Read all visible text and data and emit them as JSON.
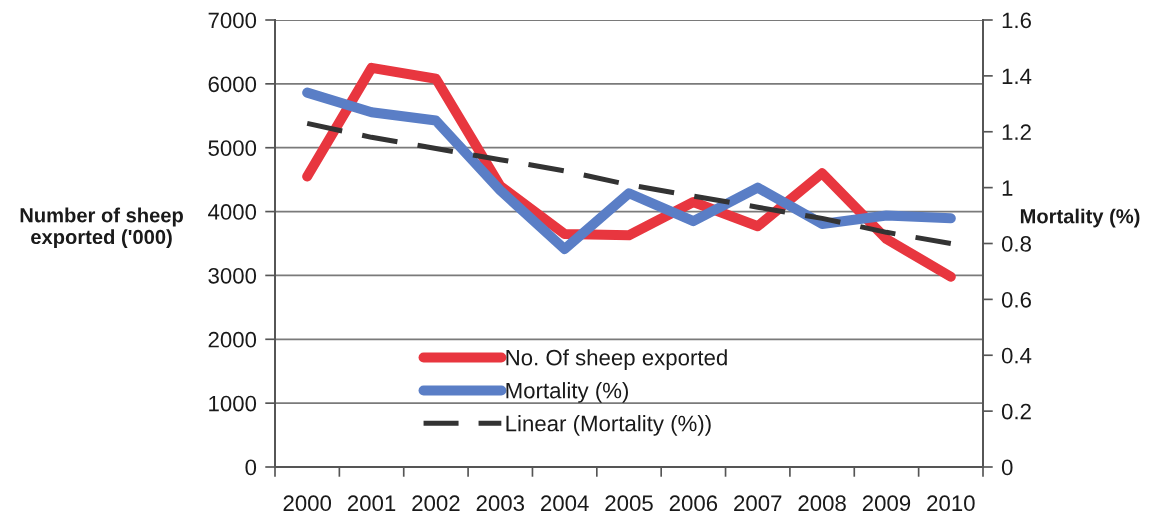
{
  "chart_data": {
    "type": "line",
    "categories": [
      "2000",
      "2001",
      "2002",
      "2003",
      "2004",
      "2005",
      "2006",
      "2007",
      "2008",
      "2009",
      "2010"
    ],
    "series": [
      {
        "name": "No. Of sheep exported",
        "color": "#e8363f",
        "axis": "y",
        "values": [
          4550,
          6250,
          6080,
          4400,
          3650,
          3630,
          4150,
          3770,
          4600,
          3570,
          2980
        ]
      },
      {
        "name": "Mortality (%)",
        "color": "#5a7ec6",
        "axis": "y2",
        "values": [
          1.34,
          1.27,
          1.24,
          0.99,
          0.78,
          0.98,
          0.88,
          1.0,
          0.87,
          0.9,
          0.89
        ]
      },
      {
        "name": "Linear (Mortality (%))",
        "color": "#333333",
        "axis": "y2",
        "line_style": "dashed",
        "values": [
          1.23,
          1.18,
          1.14,
          1.1,
          1.06,
          1.01,
          0.97,
          0.93,
          0.89,
          0.84,
          0.8
        ]
      }
    ],
    "ylabel": "Number of sheep\nexported ('000)",
    "y2label": "Mortality (%)",
    "ylim": [
      0,
      7000
    ],
    "yticks": [
      0,
      1000,
      2000,
      3000,
      4000,
      5000,
      6000,
      7000
    ],
    "y2lim": [
      0,
      1.6
    ],
    "y2ticks": [
      0,
      0.2,
      0.4,
      0.6,
      0.8,
      1,
      1.2,
      1.4,
      1.6
    ],
    "grid": "y",
    "legend": "bottom",
    "marker": "none",
    "line_style": "solid"
  }
}
